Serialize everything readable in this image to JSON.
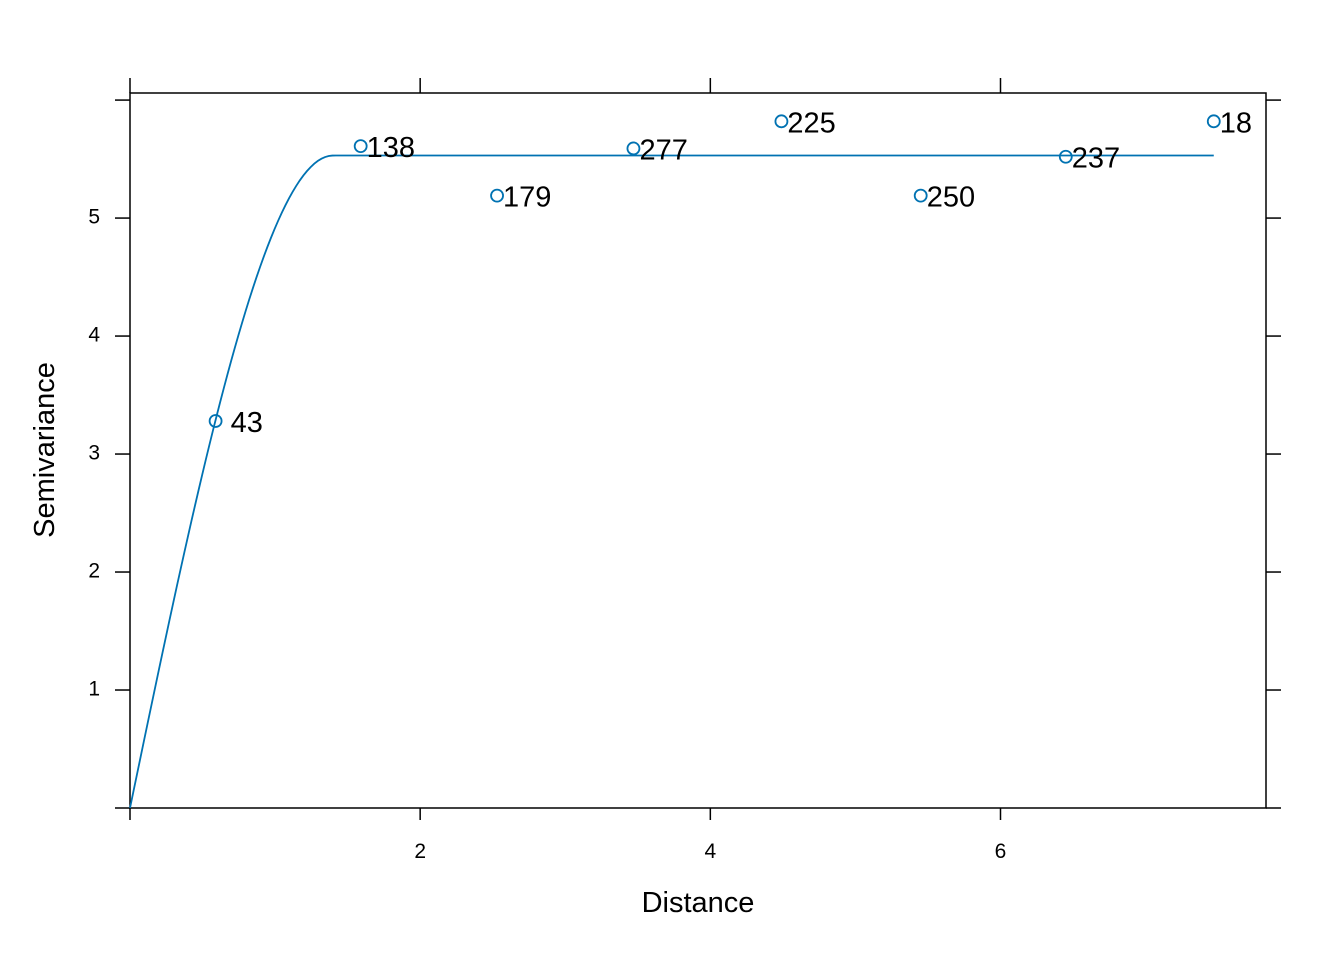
{
  "chart_data": {
    "type": "scatter",
    "title": "",
    "xlabel": "Distance",
    "ylabel": "Semivariance",
    "xlim": [
      0,
      7.83
    ],
    "ylim": [
      0,
      6.06
    ],
    "x_ticks": [
      2,
      4,
      6
    ],
    "x_tick_labels": [
      "2",
      "4",
      "6"
    ],
    "y_ticks": [
      1,
      2,
      3,
      4,
      5
    ],
    "y_tick_labels": [
      "1",
      "2",
      "3",
      "4",
      "5"
    ],
    "grid": false,
    "series": [
      {
        "points": [
          {
            "x": 0.59,
            "y": 3.28,
            "label": "43"
          },
          {
            "x": 1.59,
            "y": 5.61,
            "label": "138"
          },
          {
            "x": 2.53,
            "y": 5.19,
            "label": "179"
          },
          {
            "x": 3.47,
            "y": 5.59,
            "label": "277"
          },
          {
            "x": 4.49,
            "y": 5.82,
            "label": "225"
          },
          {
            "x": 5.45,
            "y": 5.19,
            "label": "250"
          },
          {
            "x": 6.45,
            "y": 5.52,
            "label": "237"
          },
          {
            "x": 7.47,
            "y": 5.82,
            "label": "18"
          }
        ]
      }
    ],
    "fitted_model": {
      "type": "spherical",
      "nugget": 0,
      "sill": 5.53,
      "range": 1.4,
      "x_max": 7.47
    },
    "colors": {
      "series": "#0072B2",
      "axis": "#000000"
    }
  }
}
